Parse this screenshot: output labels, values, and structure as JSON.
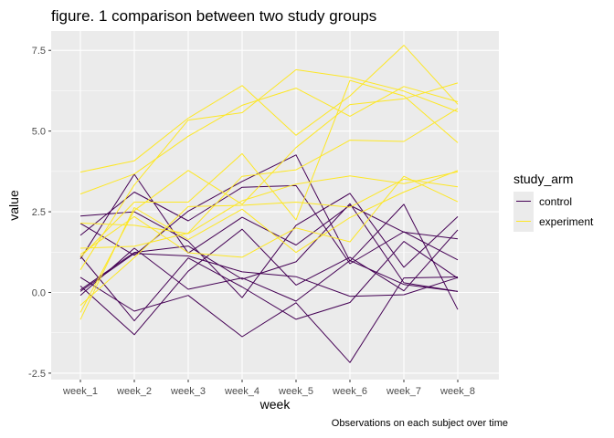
{
  "chart_data": {
    "type": "line",
    "title": "figure. 1 comparison between two study groups",
    "caption": "Observations on each subject over time",
    "xlabel": "week",
    "ylabel": "value",
    "categories": [
      "week_1",
      "week_2",
      "week_3",
      "week_4",
      "week_5",
      "week_6",
      "week_7",
      "week_8"
    ],
    "ylim": [
      -2.7,
      8.1
    ],
    "yticks": [
      -2.5,
      0.0,
      2.5,
      5.0,
      7.5
    ],
    "ytick_labels": [
      "-2.5",
      "0.0",
      "2.5",
      "5.0",
      "7.5"
    ],
    "grid": true,
    "legend": {
      "title": "study_arm",
      "placement": "right",
      "entries": [
        {
          "label": "control",
          "color": "#440154"
        },
        {
          "label": "experiment",
          "color": "#FDE725"
        }
      ]
    },
    "series": [
      {
        "group": "control",
        "values": [
          0.2,
          -1.31,
          0.66,
          1.96,
          0.23,
          1.09,
          0.05,
          1.94
        ]
      },
      {
        "group": "control",
        "values": [
          1.13,
          -0.88,
          1.07,
          0.17,
          -0.83,
          -0.31,
          1.58,
          0.44
        ]
      },
      {
        "group": "control",
        "values": [
          1.77,
          3.11,
          2.22,
          3.26,
          3.31,
          0.89,
          1.88,
          1.01
        ]
      },
      {
        "group": "control",
        "values": [
          1.04,
          3.66,
          1.22,
          2.33,
          1.47,
          2.7,
          1.87,
          1.66
        ]
      },
      {
        "group": "control",
        "values": [
          0.47,
          -0.58,
          -0.09,
          -1.37,
          -0.32,
          -2.17,
          0.45,
          0.48
        ]
      },
      {
        "group": "control",
        "values": [
          2.37,
          2.5,
          1.59,
          -0.16,
          2.08,
          3.07,
          0.78,
          2.35
        ]
      },
      {
        "group": "control",
        "values": [
          0.03,
          1.21,
          1.13,
          0.64,
          0.49,
          -0.12,
          -0.07,
          0.46
        ]
      },
      {
        "group": "control",
        "values": [
          -0.09,
          1.37,
          0.1,
          0.45,
          -0.27,
          0.99,
          0.25,
          0.03
        ]
      },
      {
        "group": "control",
        "values": [
          0.08,
          1.24,
          1.44,
          0.41,
          0.95,
          2.75,
          0.3,
          0.03
        ]
      },
      {
        "group": "control",
        "values": [
          2.14,
          1.15,
          2.52,
          3.44,
          4.26,
          0.97,
          2.73,
          -0.53
        ]
      },
      {
        "group": "experiment",
        "values": [
          3.05,
          3.67,
          4.84,
          5.8,
          6.33,
          5.46,
          6.38,
          5.91
        ]
      },
      {
        "group": "experiment",
        "values": [
          -0.84,
          2.63,
          1.64,
          2.58,
          1.24,
          2.32,
          3.11,
          3.78
        ]
      },
      {
        "group": "experiment",
        "values": [
          2.15,
          2.08,
          1.82,
          2.84,
          3.36,
          3.61,
          3.37,
          3.74
        ]
      },
      {
        "group": "experiment",
        "values": [
          -0.62,
          2.54,
          3.78,
          2.73,
          4.49,
          5.82,
          6.0,
          6.49
        ]
      },
      {
        "group": "experiment",
        "values": [
          0.7,
          3.33,
          5.34,
          5.57,
          6.9,
          6.66,
          6.24,
          5.6
        ]
      },
      {
        "group": "experiment",
        "values": [
          3.73,
          4.08,
          5.4,
          6.41,
          4.87,
          6.09,
          7.66,
          5.83
        ]
      },
      {
        "group": "experiment",
        "values": [
          1.18,
          2.35,
          1.23,
          1.09,
          2.0,
          1.57,
          3.6,
          2.81
        ]
      },
      {
        "group": "experiment",
        "values": [
          1.37,
          1.43,
          1.84,
          3.6,
          3.8,
          4.72,
          4.68,
          5.7
        ]
      },
      {
        "group": "experiment",
        "values": [
          -0.4,
          1.08,
          2.66,
          2.7,
          2.8,
          2.64,
          3.51,
          3.27
        ]
      },
      {
        "group": "experiment",
        "values": [
          1.09,
          2.8,
          2.8,
          4.3,
          2.25,
          6.57,
          6.09,
          4.64
        ]
      }
    ]
  }
}
